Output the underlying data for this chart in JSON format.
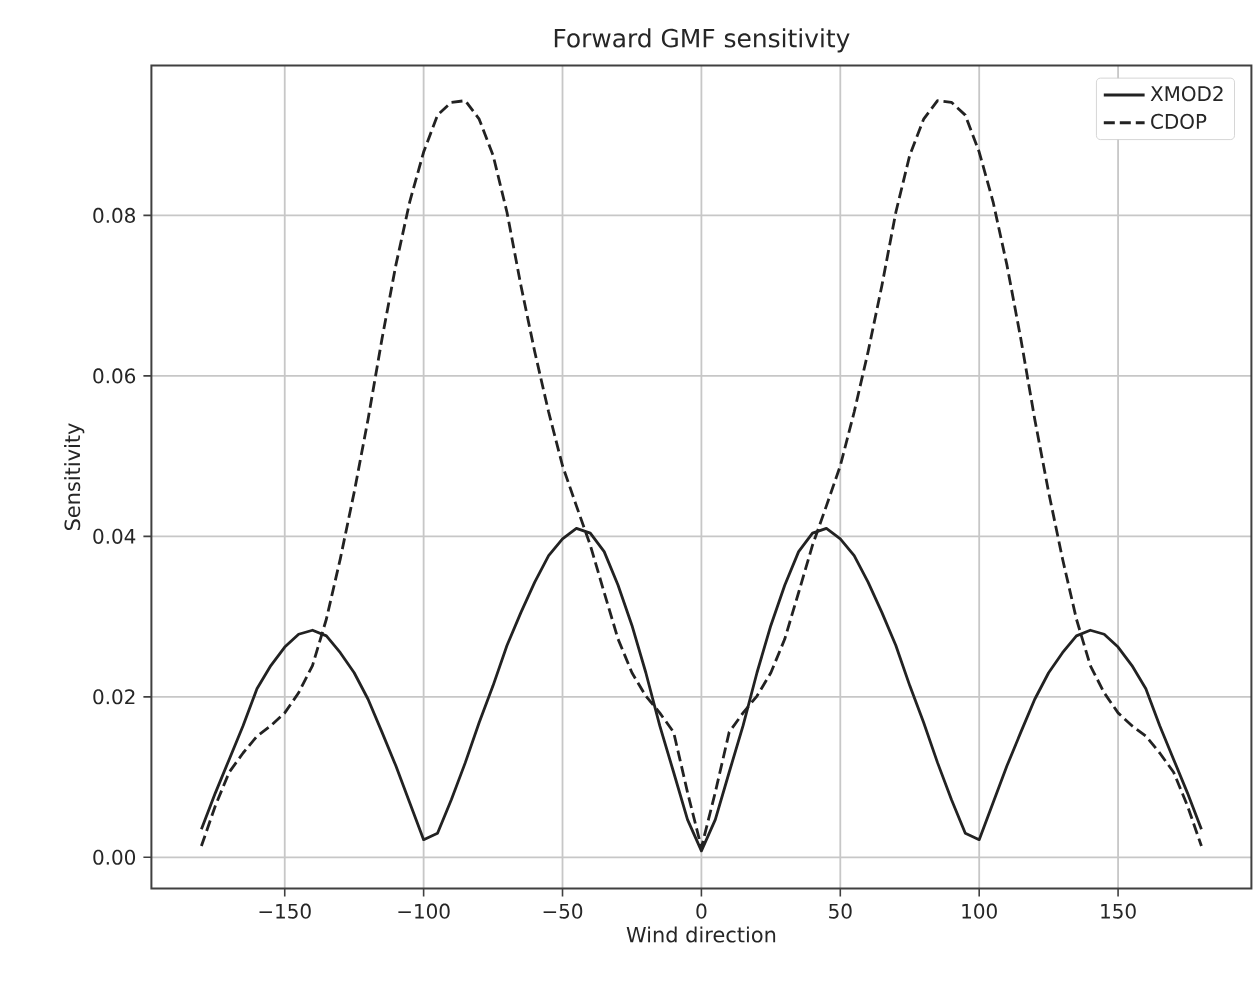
{
  "chart_data": {
    "type": "line",
    "title": "Forward GMF sensitivity",
    "xlabel": "Wind direction",
    "ylabel": "Sensitivity",
    "x": [
      -180,
      -175,
      -170,
      -165,
      -160,
      -155,
      -150,
      -145,
      -140,
      -135,
      -130,
      -125,
      -120,
      -115,
      -110,
      -105,
      -100,
      -95,
      -90,
      -85,
      -80,
      -75,
      -70,
      -65,
      -60,
      -55,
      -50,
      -45,
      -40,
      -35,
      -30,
      -25,
      -20,
      -15,
      -10,
      -5,
      0,
      5,
      10,
      15,
      20,
      25,
      30,
      35,
      40,
      45,
      50,
      55,
      60,
      65,
      70,
      75,
      80,
      85,
      90,
      95,
      100,
      105,
      110,
      115,
      120,
      125,
      130,
      135,
      140,
      145,
      150,
      155,
      160,
      165,
      170,
      175,
      180
    ],
    "series": [
      {
        "name": "XMOD2",
        "color": "#222222",
        "line_style": "solid",
        "values": [
          0.0035,
          0.008,
          0.0122,
          0.0164,
          0.021,
          0.0239,
          0.0262,
          0.0278,
          0.0283,
          0.0276,
          0.0255,
          0.023,
          0.0197,
          0.0156,
          0.0114,
          0.0068,
          0.0022,
          0.003,
          0.0072,
          0.0118,
          0.0168,
          0.0214,
          0.0264,
          0.0305,
          0.0343,
          0.0376,
          0.0397,
          0.041,
          0.0404,
          0.0381,
          0.0339,
          0.0289,
          0.023,
          0.0164,
          0.0106,
          0.0047,
          0.0008,
          0.0047,
          0.0106,
          0.0164,
          0.023,
          0.0289,
          0.0339,
          0.0381,
          0.0404,
          0.041,
          0.0397,
          0.0376,
          0.0343,
          0.0305,
          0.0264,
          0.0214,
          0.0168,
          0.0118,
          0.0072,
          0.003,
          0.0022,
          0.0068,
          0.0114,
          0.0156,
          0.0197,
          0.023,
          0.0255,
          0.0276,
          0.0283,
          0.0278,
          0.0262,
          0.0239,
          0.021,
          0.0164,
          0.0122,
          0.008,
          0.0035
        ]
      },
      {
        "name": "CDOP",
        "color": "#222222",
        "line_style": "dashed",
        "values": [
          0.0014,
          0.0064,
          0.0106,
          0.013,
          0.0151,
          0.0164,
          0.018,
          0.0205,
          0.0239,
          0.0297,
          0.0372,
          0.0455,
          0.0546,
          0.0646,
          0.0738,
          0.0817,
          0.0879,
          0.0925,
          0.0941,
          0.0943,
          0.092,
          0.0875,
          0.0804,
          0.0713,
          0.063,
          0.0555,
          0.0488,
          0.0438,
          0.0389,
          0.033,
          0.0272,
          0.023,
          0.0201,
          0.018,
          0.0156,
          0.0081,
          0.0012,
          0.0081,
          0.0156,
          0.018,
          0.0201,
          0.023,
          0.0272,
          0.033,
          0.0389,
          0.0438,
          0.0488,
          0.0555,
          0.063,
          0.0713,
          0.0804,
          0.0875,
          0.092,
          0.0943,
          0.0941,
          0.0925,
          0.0879,
          0.0817,
          0.0738,
          0.0646,
          0.0546,
          0.0455,
          0.0372,
          0.0297,
          0.0239,
          0.0205,
          0.018,
          0.0164,
          0.0151,
          0.013,
          0.0106,
          0.0064,
          0.0014
        ]
      }
    ],
    "xlim": [
      -198,
      198
    ],
    "ylim": [
      -0.0039,
      0.0987
    ],
    "xticks": [
      {
        "value": -150,
        "label": "−150"
      },
      {
        "value": -100,
        "label": "−100"
      },
      {
        "value": -50,
        "label": "−50"
      },
      0,
      50,
      100,
      150
    ],
    "yticks": [
      {
        "value": 0,
        "label": "0.00"
      },
      {
        "value": 0.02,
        "label": "0.02"
      },
      {
        "value": 0.04,
        "label": "0.04"
      },
      {
        "value": 0.06,
        "label": "0.06"
      },
      {
        "value": 0.08,
        "label": "0.08"
      }
    ],
    "grid": true,
    "legend": "top right"
  }
}
